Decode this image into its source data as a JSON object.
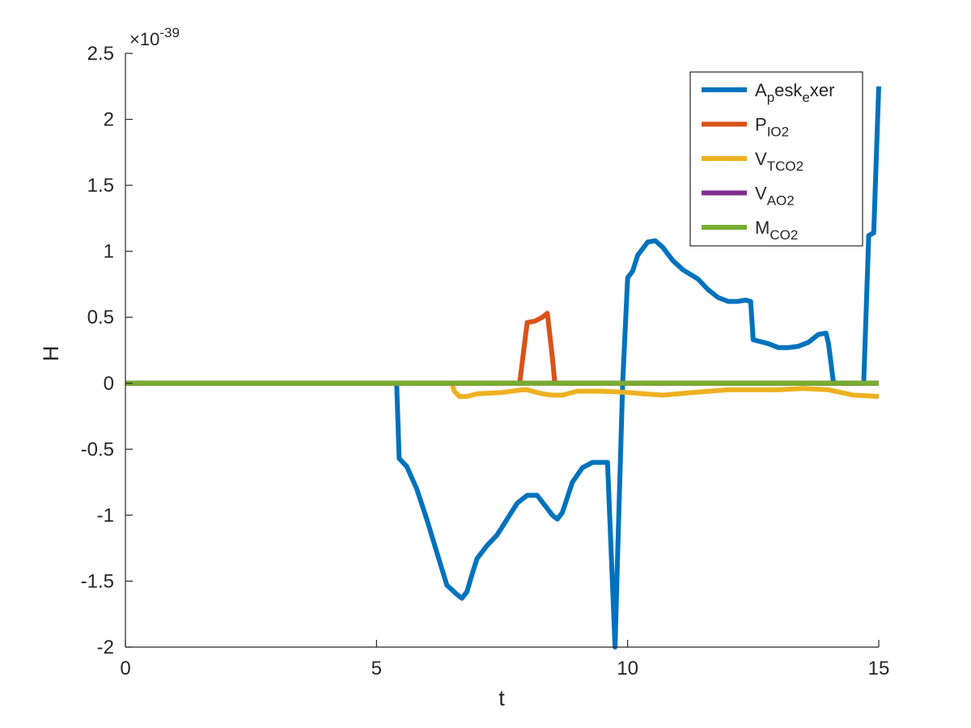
{
  "chart_data": {
    "type": "line",
    "title": "",
    "xlabel": "t",
    "ylabel": "H",
    "xlim": [
      0,
      15
    ],
    "ylim": [
      -2,
      2.5
    ],
    "y_exponent": {
      "base": "×10",
      "power": "-39"
    },
    "xticks": [
      0,
      5,
      10,
      15
    ],
    "xtick_labels": [
      "0",
      "5",
      "10",
      "15"
    ],
    "yticks": [
      -2,
      -1.5,
      -1,
      -0.5,
      0,
      0.5,
      1,
      1.5,
      2,
      2.5
    ],
    "ytick_labels": [
      "-2",
      "-1.5",
      "-1",
      "-0.5",
      "0",
      "0.5",
      "1",
      "1.5",
      "2",
      "2.5"
    ],
    "grid": false,
    "legend_position": "top-right",
    "series": [
      {
        "name": "A_pesk_exer",
        "label_parts": [
          {
            "t": "A",
            "sub": false
          },
          {
            "t": "p",
            "sub": true
          },
          {
            "t": "esk",
            "sub": false
          },
          {
            "t": "e",
            "sub": true
          },
          {
            "t": "xer",
            "sub": false
          }
        ],
        "color": "#0072BD",
        "x": [
          0,
          5.4,
          5.45,
          5.6,
          5.8,
          6.0,
          6.2,
          6.4,
          6.6,
          6.7,
          6.8,
          6.9,
          7.0,
          7.2,
          7.4,
          7.6,
          7.8,
          8.0,
          8.2,
          8.4,
          8.5,
          8.6,
          8.7,
          8.9,
          9.1,
          9.3,
          9.5,
          9.6,
          9.75,
          9.8,
          9.9,
          10.0,
          10.1,
          10.2,
          10.4,
          10.55,
          10.7,
          10.9,
          11.1,
          11.4,
          11.6,
          11.8,
          12.0,
          12.2,
          12.35,
          12.45,
          12.5,
          12.6,
          12.8,
          13.0,
          13.2,
          13.4,
          13.6,
          13.8,
          13.95,
          14.0,
          14.1,
          14.7,
          14.8,
          14.9,
          15.0
        ],
        "y": [
          0,
          0,
          -0.57,
          -0.63,
          -0.8,
          -1.03,
          -1.28,
          -1.53,
          -1.6,
          -1.63,
          -1.58,
          -1.45,
          -1.33,
          -1.23,
          -1.15,
          -1.03,
          -0.91,
          -0.85,
          -0.85,
          -0.95,
          -1.0,
          -1.03,
          -0.98,
          -0.75,
          -0.64,
          -0.6,
          -0.6,
          -0.6,
          -2.0,
          -1.3,
          0,
          0.8,
          0.85,
          0.97,
          1.07,
          1.08,
          1.03,
          0.93,
          0.86,
          0.79,
          0.71,
          0.65,
          0.62,
          0.62,
          0.63,
          0.62,
          0.33,
          0.32,
          0.3,
          0.27,
          0.27,
          0.28,
          0.31,
          0.37,
          0.38,
          0.3,
          0,
          0,
          1.12,
          1.14,
          2.25
        ]
      },
      {
        "name": "P_IO2",
        "label_parts": [
          {
            "t": "P",
            "sub": false
          },
          {
            "t": "IO2",
            "sub": true
          }
        ],
        "color": "#D95319",
        "x": [
          0,
          7.85,
          8.0,
          8.15,
          8.3,
          8.4,
          8.5,
          8.55,
          15
        ],
        "y": [
          0,
          0,
          0.46,
          0.47,
          0.5,
          0.53,
          0.2,
          0,
          0
        ]
      },
      {
        "name": "V_TCO2",
        "label_parts": [
          {
            "t": "V",
            "sub": false
          },
          {
            "t": "TCO2",
            "sub": true
          }
        ],
        "color": "#EDB120",
        "x": [
          0,
          6.5,
          6.55,
          6.65,
          6.8,
          7.0,
          7.5,
          7.9,
          8.0,
          8.1,
          8.2,
          8.3,
          8.5,
          8.7,
          9.0,
          9.5,
          10.0,
          10.3,
          10.7,
          11.3,
          12.0,
          12.5,
          13.0,
          13.5,
          14.0,
          14.5,
          15.0
        ],
        "y": [
          0,
          0,
          -0.06,
          -0.1,
          -0.1,
          -0.08,
          -0.07,
          -0.05,
          -0.05,
          -0.06,
          -0.07,
          -0.08,
          -0.09,
          -0.09,
          -0.06,
          -0.06,
          -0.07,
          -0.08,
          -0.09,
          -0.07,
          -0.05,
          -0.05,
          -0.05,
          -0.04,
          -0.05,
          -0.09,
          -0.1
        ]
      },
      {
        "name": "V_AO2",
        "label_parts": [
          {
            "t": "V",
            "sub": false
          },
          {
            "t": "AO2",
            "sub": true
          }
        ],
        "color": "#7E2F8E",
        "x": [
          0,
          15
        ],
        "y": [
          0,
          0
        ]
      },
      {
        "name": "M_CO2",
        "label_parts": [
          {
            "t": "M",
            "sub": false
          },
          {
            "t": "CO2",
            "sub": true
          }
        ],
        "color": "#77AC30",
        "x": [
          0,
          15
        ],
        "y": [
          0,
          0
        ]
      }
    ]
  }
}
